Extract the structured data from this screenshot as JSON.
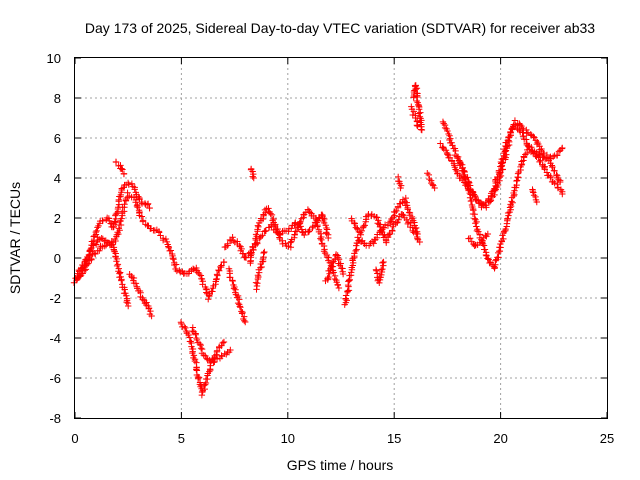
{
  "chart_data": {
    "type": "scatter",
    "title": "Day 173 of 2025, Sidereal Day-to-day VTEC variation (SDTVAR) for receiver ab33",
    "xlabel": "GPS time / hours",
    "ylabel": "SDTVAR / TECUs",
    "xlim": [
      0,
      25
    ],
    "ylim": [
      -8,
      10
    ],
    "xticks": [
      0,
      5,
      10,
      15,
      20,
      25
    ],
    "yticks": [
      -8,
      -6,
      -4,
      -2,
      0,
      2,
      4,
      6,
      8,
      10
    ],
    "grid": true,
    "marker": "+",
    "color": "#ff0000",
    "series": [
      {
        "name": "SDTVAR",
        "description_note": "dense curves of plus markers approximated as polylines (x hours, y TECU)",
        "tracks": [
          [
            [
              0.0,
              -1.2
            ],
            [
              0.3,
              -0.8
            ],
            [
              0.6,
              0.0
            ],
            [
              0.9,
              1.0
            ],
            [
              1.2,
              1.8
            ],
            [
              1.5,
              2.0
            ],
            [
              1.8,
              1.5
            ],
            [
              2.0,
              2.5
            ],
            [
              2.2,
              3.5
            ],
            [
              2.5,
              3.8
            ],
            [
              2.8,
              3.5
            ],
            [
              3.1,
              2.8
            ],
            [
              3.4,
              2.7
            ],
            [
              3.5,
              2.5
            ]
          ],
          [
            [
              0.0,
              -1.0
            ],
            [
              0.4,
              -0.3
            ],
            [
              0.8,
              0.5
            ],
            [
              1.1,
              1.0
            ],
            [
              1.4,
              0.9
            ],
            [
              1.8,
              0.6
            ],
            [
              2.1,
              1.5
            ],
            [
              2.3,
              2.6
            ],
            [
              2.5,
              3.2
            ],
            [
              2.8,
              3.0
            ],
            [
              3.1,
              2.0
            ],
            [
              3.5,
              1.5
            ],
            [
              3.9,
              1.3
            ],
            [
              4.3,
              0.8
            ],
            [
              4.6,
              0.0
            ],
            [
              4.8,
              -0.6
            ],
            [
              5.1,
              -0.8
            ],
            [
              5.4,
              -0.7
            ],
            [
              5.7,
              -0.5
            ]
          ],
          [
            [
              0.1,
              -1.1
            ],
            [
              0.5,
              -0.5
            ],
            [
              0.9,
              0.2
            ],
            [
              1.3,
              0.6
            ],
            [
              1.7,
              0.8
            ],
            [
              1.9,
              0.2
            ],
            [
              2.1,
              -0.8
            ],
            [
              2.3,
              -1.6
            ],
            [
              2.5,
              -2.4
            ]
          ],
          [
            [
              1.9,
              4.8
            ],
            [
              2.1,
              4.6
            ],
            [
              2.3,
              4.2
            ]
          ],
          [
            [
              2.6,
              -0.8
            ],
            [
              2.9,
              -1.4
            ],
            [
              3.1,
              -1.9
            ],
            [
              3.3,
              -2.2
            ],
            [
              3.5,
              -2.6
            ],
            [
              3.6,
              -2.9
            ]
          ],
          [
            [
              5.0,
              -3.2
            ],
            [
              5.3,
              -3.8
            ],
            [
              5.5,
              -4.5
            ],
            [
              5.7,
              -5.5
            ],
            [
              5.9,
              -6.5
            ],
            [
              6.0,
              -6.8
            ],
            [
              6.2,
              -6.0
            ],
            [
              6.4,
              -5.3
            ],
            [
              6.7,
              -5.0
            ],
            [
              7.0,
              -4.8
            ],
            [
              7.3,
              -4.6
            ]
          ],
          [
            [
              5.5,
              -3.5
            ],
            [
              5.8,
              -4.2
            ],
            [
              6.1,
              -4.9
            ],
            [
              6.4,
              -5.2
            ],
            [
              6.7,
              -4.6
            ],
            [
              7.0,
              -4.2
            ]
          ],
          [
            [
              5.7,
              -0.6
            ],
            [
              6.0,
              -1.2
            ],
            [
              6.3,
              -2.0
            ],
            [
              6.6,
              -1.2
            ],
            [
              6.8,
              -0.5
            ],
            [
              7.0,
              -0.2
            ]
          ],
          [
            [
              7.2,
              -0.6
            ],
            [
              7.5,
              -1.5
            ],
            [
              7.8,
              -2.5
            ],
            [
              8.0,
              -3.2
            ]
          ],
          [
            [
              7.0,
              0.5
            ],
            [
              7.4,
              1.0
            ],
            [
              7.7,
              0.6
            ],
            [
              8.0,
              0.0
            ],
            [
              8.4,
              0.5
            ],
            [
              8.8,
              1.2
            ],
            [
              9.2,
              1.6
            ],
            [
              9.6,
              1.2
            ],
            [
              10.0,
              1.4
            ],
            [
              10.4,
              1.8
            ],
            [
              10.8,
              1.2
            ],
            [
              11.2,
              1.6
            ],
            [
              11.6,
              2.2
            ],
            [
              11.9,
              1.0
            ]
          ],
          [
            [
              8.2,
              -0.3
            ],
            [
              8.6,
              1.5
            ],
            [
              9.0,
              2.5
            ],
            [
              9.3,
              2.0
            ],
            [
              9.7,
              0.8
            ],
            [
              10.1,
              0.6
            ],
            [
              10.5,
              1.6
            ],
            [
              10.9,
              2.4
            ],
            [
              11.3,
              2.0
            ],
            [
              11.7,
              0.5
            ],
            [
              12.1,
              -0.5
            ],
            [
              12.4,
              -1.5
            ]
          ],
          [
            [
              8.3,
              4.5
            ],
            [
              8.4,
              4.0
            ]
          ],
          [
            [
              8.5,
              -1.5
            ],
            [
              8.7,
              -0.5
            ],
            [
              8.9,
              0.3
            ]
          ],
          [
            [
              11.8,
              -1.2
            ],
            [
              12.0,
              -0.6
            ],
            [
              12.3,
              0.2
            ],
            [
              12.6,
              -0.8
            ]
          ],
          [
            [
              12.7,
              -2.4
            ],
            [
              13.0,
              -0.5
            ],
            [
              13.3,
              1.0
            ],
            [
              13.7,
              0.6
            ],
            [
              14.0,
              0.8
            ],
            [
              14.4,
              1.4
            ],
            [
              14.8,
              1.8
            ],
            [
              15.2,
              2.6
            ],
            [
              15.5,
              3.0
            ],
            [
              15.8,
              2.0
            ],
            [
              16.1,
              1.2
            ]
          ],
          [
            [
              13.0,
              2.0
            ],
            [
              13.4,
              1.2
            ],
            [
              13.8,
              2.2
            ],
            [
              14.2,
              2.0
            ],
            [
              14.6,
              0.8
            ],
            [
              15.0,
              1.6
            ],
            [
              15.4,
              2.2
            ],
            [
              15.8,
              1.6
            ],
            [
              16.2,
              0.8
            ]
          ],
          [
            [
              14.1,
              -0.6
            ],
            [
              14.3,
              -1.2
            ],
            [
              14.5,
              -0.2
            ]
          ],
          [
            [
              15.2,
              4.0
            ],
            [
              15.3,
              3.5
            ]
          ],
          [
            [
              15.9,
              8.0
            ],
            [
              16.0,
              8.7
            ],
            [
              16.1,
              7.8
            ],
            [
              16.2,
              7.2
            ],
            [
              16.3,
              6.4
            ]
          ],
          [
            [
              15.8,
              7.5
            ],
            [
              16.0,
              7.0
            ],
            [
              16.1,
              6.6
            ]
          ],
          [
            [
              16.6,
              4.2
            ],
            [
              16.9,
              3.5
            ]
          ],
          [
            [
              17.2,
              5.7
            ],
            [
              17.5,
              5.2
            ],
            [
              17.8,
              4.6
            ],
            [
              18.1,
              4.0
            ],
            [
              18.4,
              3.6
            ],
            [
              18.7,
              3.2
            ],
            [
              19.0,
              2.8
            ],
            [
              19.3,
              2.6
            ],
            [
              19.6,
              3.0
            ],
            [
              19.9,
              3.8
            ],
            [
              20.2,
              5.0
            ],
            [
              20.5,
              6.3
            ],
            [
              20.7,
              6.8
            ],
            [
              21.0,
              6.6
            ],
            [
              21.3,
              6.2
            ],
            [
              21.6,
              6.0
            ],
            [
              21.9,
              5.4
            ],
            [
              22.2,
              5.0
            ],
            [
              22.5,
              4.4
            ],
            [
              22.8,
              3.8
            ]
          ],
          [
            [
              17.3,
              6.8
            ],
            [
              17.6,
              6.0
            ],
            [
              17.9,
              5.2
            ],
            [
              18.2,
              4.4
            ],
            [
              18.5,
              3.8
            ],
            [
              18.8,
              3.0
            ],
            [
              19.1,
              2.6
            ],
            [
              19.4,
              2.8
            ],
            [
              19.7,
              3.5
            ],
            [
              20.0,
              4.6
            ],
            [
              20.3,
              5.8
            ],
            [
              20.6,
              6.6
            ],
            [
              20.9,
              6.4
            ],
            [
              21.2,
              5.8
            ],
            [
              21.5,
              5.4
            ],
            [
              21.8,
              5.2
            ],
            [
              22.1,
              5.0
            ],
            [
              22.4,
              5.0
            ],
            [
              22.7,
              5.2
            ],
            [
              22.9,
              5.5
            ]
          ],
          [
            [
              18.0,
              5.0
            ],
            [
              18.3,
              4.2
            ],
            [
              18.6,
              3.0
            ],
            [
              18.9,
              1.5
            ],
            [
              19.2,
              0.6
            ],
            [
              19.5,
              -0.2
            ],
            [
              19.7,
              -0.5
            ],
            [
              19.9,
              0.2
            ],
            [
              20.1,
              1.0
            ],
            [
              20.4,
              2.2
            ],
            [
              20.7,
              3.6
            ],
            [
              21.0,
              4.8
            ],
            [
              21.3,
              5.5
            ],
            [
              21.6,
              5.2
            ],
            [
              21.9,
              4.8
            ],
            [
              22.2,
              4.2
            ],
            [
              22.5,
              3.8
            ],
            [
              22.8,
              3.4
            ],
            [
              22.9,
              3.2
            ]
          ],
          [
            [
              18.5,
              1.0
            ],
            [
              18.8,
              0.6
            ],
            [
              19.1,
              0.8
            ],
            [
              19.4,
              1.2
            ]
          ],
          [
            [
              21.5,
              3.4
            ],
            [
              21.7,
              2.8
            ]
          ]
        ]
      }
    ]
  }
}
